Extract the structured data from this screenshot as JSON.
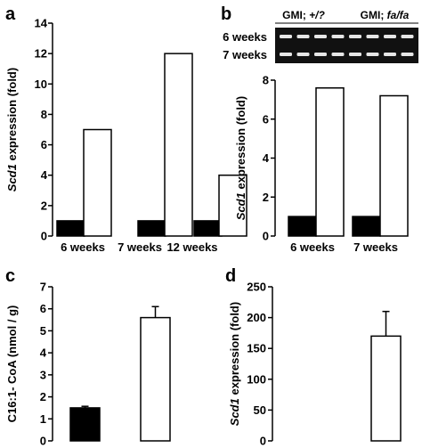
{
  "panels": [
    {
      "id": "a",
      "letter": "a",
      "chart_data": {
        "type": "bar",
        "categories": [
          "6 weeks",
          "7 weeks",
          "12 weeks"
        ],
        "series": [
          {
            "name": "",
            "color": "#000000",
            "values": [
              1,
              1,
              1
            ]
          },
          {
            "name": "",
            "color": "#ffffff",
            "values": [
              7,
              12,
              4
            ]
          }
        ],
        "ylim": [
          0,
          14
        ],
        "yticks": [
          0,
          2,
          4,
          6,
          8,
          10,
          12,
          14
        ],
        "ylabel_italic": "Scd1",
        "ylabel_rest": " expression (fold)",
        "xlabel": "",
        "title": ""
      }
    },
    {
      "id": "b",
      "letter": "b",
      "gel": {
        "headers": [
          {
            "prefix": "GMI; ",
            "italic": "+/?"
          },
          {
            "prefix": "GMI; ",
            "italic": "fa/fa"
          }
        ],
        "rows": [
          "6 weeks",
          "7 weeks"
        ]
      },
      "chart_data": {
        "type": "bar",
        "categories": [
          "6 weeks",
          "7 weeks"
        ],
        "series": [
          {
            "name": "",
            "color": "#000000",
            "values": [
              1,
              1
            ]
          },
          {
            "name": "",
            "color": "#ffffff",
            "values": [
              7.6,
              7.2
            ]
          }
        ],
        "ylim": [
          0,
          8
        ],
        "yticks": [
          0,
          2,
          4,
          6,
          8
        ],
        "ylabel_italic": "Scd1",
        "ylabel_rest": " expression (fold)",
        "xlabel": "",
        "title": ""
      }
    },
    {
      "id": "c",
      "letter": "c",
      "chart_data": {
        "type": "bar",
        "categories": [
          "",
          ""
        ],
        "series": [
          {
            "name": "",
            "color": "#000000",
            "values": [
              1.5,
              0
            ]
          },
          {
            "name": "",
            "color": "#ffffff",
            "values": [
              0,
              5.6
            ]
          }
        ],
        "errors": [
          0.07,
          0.5
        ],
        "ylim": [
          0,
          7
        ],
        "yticks": [
          0,
          1,
          2,
          3,
          4,
          5,
          6,
          7
        ],
        "ylabel_italic": "",
        "ylabel_rest": "C16:1- CoA (nmol / g)",
        "xlabel": "",
        "title": ""
      }
    },
    {
      "id": "d",
      "letter": "d",
      "chart_data": {
        "type": "bar",
        "categories": [
          "",
          ""
        ],
        "series": [
          {
            "name": "",
            "color": "#000000",
            "values": [
              1,
              0
            ]
          },
          {
            "name": "",
            "color": "#ffffff",
            "values": [
              0,
              170
            ]
          }
        ],
        "errors": [
          0,
          40
        ],
        "ylim": [
          0,
          250
        ],
        "yticks": [
          0,
          50,
          100,
          150,
          200,
          250
        ],
        "ylabel_italic": "Scd1",
        "ylabel_rest": " expression (fold)",
        "xlabel": "",
        "title": ""
      }
    }
  ]
}
